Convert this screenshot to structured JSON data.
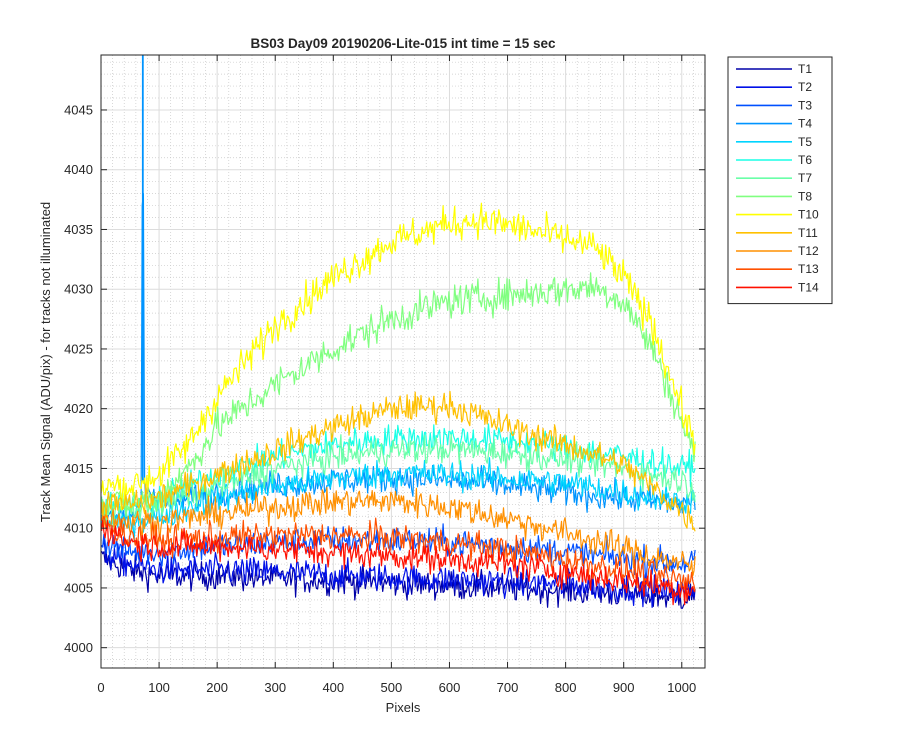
{
  "chart_data": {
    "type": "line",
    "title": "BS03 Day09 20190206-Lite-015 int time = 15 sec",
    "xlabel": "Pixels",
    "ylabel": "Track Mean Signal (ADU/pix) - for tracks not illuminated",
    "xlim": [
      0,
      1040
    ],
    "ylim": [
      3998.3,
      4049.6
    ],
    "x_ticks": [
      0,
      100,
      200,
      300,
      400,
      500,
      600,
      700,
      800,
      900,
      1000
    ],
    "y_ticks": [
      4000,
      4005,
      4010,
      4015,
      4020,
      4025,
      4030,
      4035,
      4040,
      4045
    ],
    "grid": true,
    "minor_grid": true,
    "legend_position": "outside-top-right",
    "series": [
      {
        "name": "T1",
        "color": "#0000a8",
        "x": [
          0,
          50,
          100,
          200,
          300,
          400,
          500,
          600,
          700,
          800,
          900,
          1000,
          1030
        ],
        "y": [
          4007.5,
          4006.5,
          4006,
          4006,
          4005.8,
          4005.6,
          4005.4,
          4005.2,
          4005,
          4004.8,
          4004.5,
          4004.2,
          4004.5
        ]
      },
      {
        "name": "T2",
        "color": "#0010e8",
        "x": [
          0,
          50,
          100,
          200,
          300,
          400,
          500,
          600,
          700,
          800,
          900,
          1000,
          1030
        ],
        "y": [
          4008,
          4007,
          4006.5,
          4006.5,
          4006.3,
          4006.1,
          4005.9,
          4005.7,
          4005.5,
          4005.3,
          4005,
          4004.7,
          4005
        ]
      },
      {
        "name": "T3",
        "color": "#0050ff",
        "x": [
          0,
          50,
          100,
          200,
          300,
          400,
          500,
          600,
          700,
          800,
          900,
          1000,
          1030
        ],
        "y": [
          4009,
          4008,
          4008,
          4008.5,
          4008.8,
          4009,
          4009,
          4008.8,
          4008.5,
          4008,
          4007.5,
          4007,
          4007.5
        ]
      },
      {
        "name": "T4",
        "color": "#0094ff",
        "x": [
          0,
          50,
          70,
          72,
          74,
          100,
          200,
          300,
          400,
          500,
          600,
          700,
          800,
          900,
          1000,
          1030
        ],
        "y": [
          4011,
          4011,
          4012,
          4062,
          4014,
          4012,
          4013,
          4013.6,
          4014,
          4014.2,
          4014,
          4013.6,
          4013,
          4012.5,
          4012,
          4012.5
        ]
      },
      {
        "name": "T5",
        "color": "#00d4ff",
        "x": [
          0,
          50,
          100,
          200,
          300,
          400,
          500,
          600,
          700,
          800,
          900,
          1000,
          1030
        ],
        "y": [
          4010.5,
          4010.5,
          4011,
          4012.5,
          4013.5,
          4014.2,
          4014.6,
          4014.5,
          4014.2,
          4013.8,
          4013,
          4012.2,
          4012.5
        ]
      },
      {
        "name": "T6",
        "color": "#18ffe6",
        "x": [
          0,
          50,
          100,
          200,
          300,
          400,
          500,
          600,
          700,
          800,
          900,
          1000,
          1030
        ],
        "y": [
          4012,
          4012,
          4012.5,
          4014.5,
          4016,
          4017,
          4017.5,
          4017.6,
          4017.3,
          4016.8,
          4016,
          4015,
          4015.5
        ]
      },
      {
        "name": "T7",
        "color": "#6affa8",
        "x": [
          0,
          50,
          100,
          200,
          300,
          400,
          500,
          600,
          700,
          800,
          900,
          1000,
          1030
        ],
        "y": [
          4011.5,
          4011.5,
          4012,
          4013.5,
          4015,
          4016,
          4016.5,
          4016.6,
          4016.3,
          4015.8,
          4015,
          4014,
          4013
        ]
      },
      {
        "name": "T8",
        "color": "#80ff80",
        "x": [
          0,
          50,
          100,
          150,
          200,
          300,
          400,
          500,
          600,
          700,
          800,
          850,
          900,
          950,
          1000,
          1030
        ],
        "y": [
          4012,
          4012,
          4012.5,
          4015,
          4018.5,
          4022,
          4025,
          4027.5,
          4029,
          4029.5,
          4030,
          4030.2,
          4029,
          4025,
          4019,
          4015
        ]
      },
      {
        "name": "T10",
        "color": "#ffff00",
        "x": [
          0,
          50,
          100,
          150,
          200,
          300,
          400,
          500,
          600,
          650,
          700,
          800,
          850,
          900,
          950,
          1000,
          1030
        ],
        "y": [
          4013.5,
          4013.5,
          4014.5,
          4017,
          4021,
          4027,
          4031,
          4034,
          4035.5,
          4035.8,
          4035.4,
          4034.2,
          4033.5,
          4031,
          4027,
          4020,
          4016
        ]
      },
      {
        "name": "T11",
        "color": "#ffc000",
        "x": [
          0,
          50,
          100,
          200,
          300,
          400,
          500,
          600,
          700,
          800,
          900,
          1000,
          1030
        ],
        "y": [
          4012,
          4012,
          4012.5,
          4014.5,
          4016.5,
          4018.5,
          4020,
          4020.3,
          4018.5,
          4017,
          4015.3,
          4011.5,
          4010
        ]
      },
      {
        "name": "T12",
        "color": "#ff9000",
        "x": [
          0,
          50,
          100,
          200,
          300,
          400,
          500,
          600,
          700,
          800,
          900,
          1000,
          1030
        ],
        "y": [
          4011,
          4010.5,
          4010.5,
          4011.2,
          4011.8,
          4012.2,
          4012.3,
          4011.8,
          4010.8,
          4009.6,
          4008.3,
          4007,
          4006.5
        ]
      },
      {
        "name": "T13",
        "color": "#ff5000",
        "x": [
          0,
          50,
          100,
          200,
          300,
          400,
          500,
          600,
          700,
          800,
          900,
          1000,
          1030
        ],
        "y": [
          4010.5,
          4009.3,
          4009,
          4009.2,
          4009.4,
          4009.4,
          4009.2,
          4008.8,
          4008.2,
          4007.4,
          4006.5,
          4005.6,
          4005.4
        ]
      },
      {
        "name": "T14",
        "color": "#ff1000",
        "x": [
          0,
          50,
          100,
          200,
          300,
          400,
          500,
          600,
          700,
          800,
          900,
          1000,
          1030
        ],
        "y": [
          4010.2,
          4008.8,
          4008.5,
          4008.5,
          4008.3,
          4008,
          4007.7,
          4007.4,
          4007,
          4006.3,
          4005.6,
          4004.9,
          4004.8
        ]
      }
    ]
  }
}
